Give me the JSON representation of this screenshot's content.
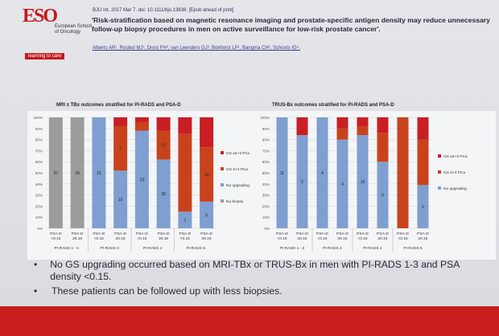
{
  "logo": {
    "mark": "ESO",
    "org": "European School of Oncology",
    "tagline": "learning to care"
  },
  "citation": "BJU Int. 2017 Mar 7. doi: 10.1111/bju.13836. [Epub ahead of print]",
  "headline": "'Risk-stratification based on magnetic resonance imaging and prostate-specific antigen density may reduce unnecessary follow-up biopsy procedures in men on active surveillance for low-risk prostate cancer'.",
  "authors": "Alberts AR¹, Roobol MJ¹, Drost FH², van Leenders GJ³, Bokhorst LP¹, Bangma CH¹, Schoots IG⁴.",
  "bullets": [
    "No GS upgrading occurred based on MRI-TBx or TRUS-Bx in men with PI-RADS 1-3 and PSA density <0.15.",
    "These patients can be followed up with less biopsies."
  ],
  "colors": {
    "gs_high": "#c81e24",
    "gs_low": "#c8431c",
    "no_upgrading": "#7f9fd0",
    "no_biopsy": "#9c9c9c"
  },
  "chart_data": [
    {
      "type": "bar",
      "title": "MRI ± TBx outcomes stratified for PI-RADS and PSA-D",
      "categories": [
        "PSA-D <0.15",
        "PSA-D ≥0.15",
        "PSA-D <0.15",
        "PSA-D ≥0.15",
        "PSA-D <0.15",
        "PSA-D ≥0.15",
        "PSA-D <0.15",
        "PSA-D ≥0.15"
      ],
      "groups": [
        "PI-RADS 1 - 2",
        "PI-RADS 3",
        "PI-RADS 4",
        "PI-RADS 5"
      ],
      "stacked": true,
      "ylim": [
        0,
        100
      ],
      "yticks": [
        "0%",
        "10%",
        "20%",
        "30%",
        "40%",
        "50%",
        "60%",
        "70%",
        "80%",
        "90%",
        "100%"
      ],
      "series": [
        {
          "name": "No biopsy",
          "values": [
            100,
            100,
            0,
            0,
            0,
            0,
            0,
            0
          ],
          "labels": [
            "37",
            "39",
            "",
            "",
            "",
            "",
            "",
            ""
          ]
        },
        {
          "name": "No upgrading",
          "values": [
            0,
            0,
            100,
            52,
            88,
            62,
            15,
            24
          ],
          "labels": [
            "",
            "",
            "15",
            "10",
            "23",
            "28",
            "1",
            "6"
          ]
        },
        {
          "name": "GS 3+4 PCa",
          "values": [
            0,
            0,
            0,
            40,
            8,
            26,
            70,
            49
          ],
          "labels": [
            "",
            "",
            "",
            "7",
            "",
            "12",
            "",
            "10"
          ]
        },
        {
          "name": "GS ≥4+3 PCa",
          "values": [
            0,
            0,
            0,
            8,
            4,
            12,
            15,
            27
          ],
          "labels": [
            "",
            "",
            "",
            "",
            "",
            "",
            "",
            ""
          ]
        }
      ]
    },
    {
      "type": "bar",
      "title": "TRUS-Bx outcomes stratified for PI-RADS and PSA-D",
      "categories": [
        "PSA-D <0.15",
        "PSA-D ≥0.15",
        "PSA-D <0.15",
        "PSA-D ≥0.15",
        "PSA-D <0.15",
        "PSA-D ≥0.15",
        "PSA-D <0.15",
        "PSA-D ≥0.15"
      ],
      "groups": [
        "PI-RADS 1 - 2",
        "PI-RADS 3",
        "PI-RADS 4",
        "PI-RADS 5"
      ],
      "stacked": true,
      "ylim": [
        0,
        100
      ],
      "yticks": [
        "0%",
        "10%",
        "20%",
        "30%",
        "40%",
        "50%",
        "60%",
        "70%",
        "80%",
        "90%",
        "100%"
      ],
      "series": [
        {
          "name": "No upgrading",
          "values": [
            100,
            84,
            100,
            80,
            84,
            60,
            0,
            39
          ],
          "labels": [
            "11",
            "5",
            "4",
            "4",
            "10",
            "6",
            "",
            "2"
          ]
        },
        {
          "name": "GS 3+4 PCa",
          "values": [
            0,
            0,
            0,
            10,
            8,
            26,
            100,
            41
          ],
          "labels": [
            "",
            "",
            "",
            "",
            "",
            "",
            "",
            ""
          ]
        },
        {
          "name": "GS ≥4+3 PCa",
          "values": [
            0,
            16,
            0,
            10,
            8,
            14,
            0,
            20
          ],
          "labels": [
            "",
            "",
            "",
            "",
            "",
            "",
            "",
            ""
          ]
        }
      ]
    }
  ]
}
